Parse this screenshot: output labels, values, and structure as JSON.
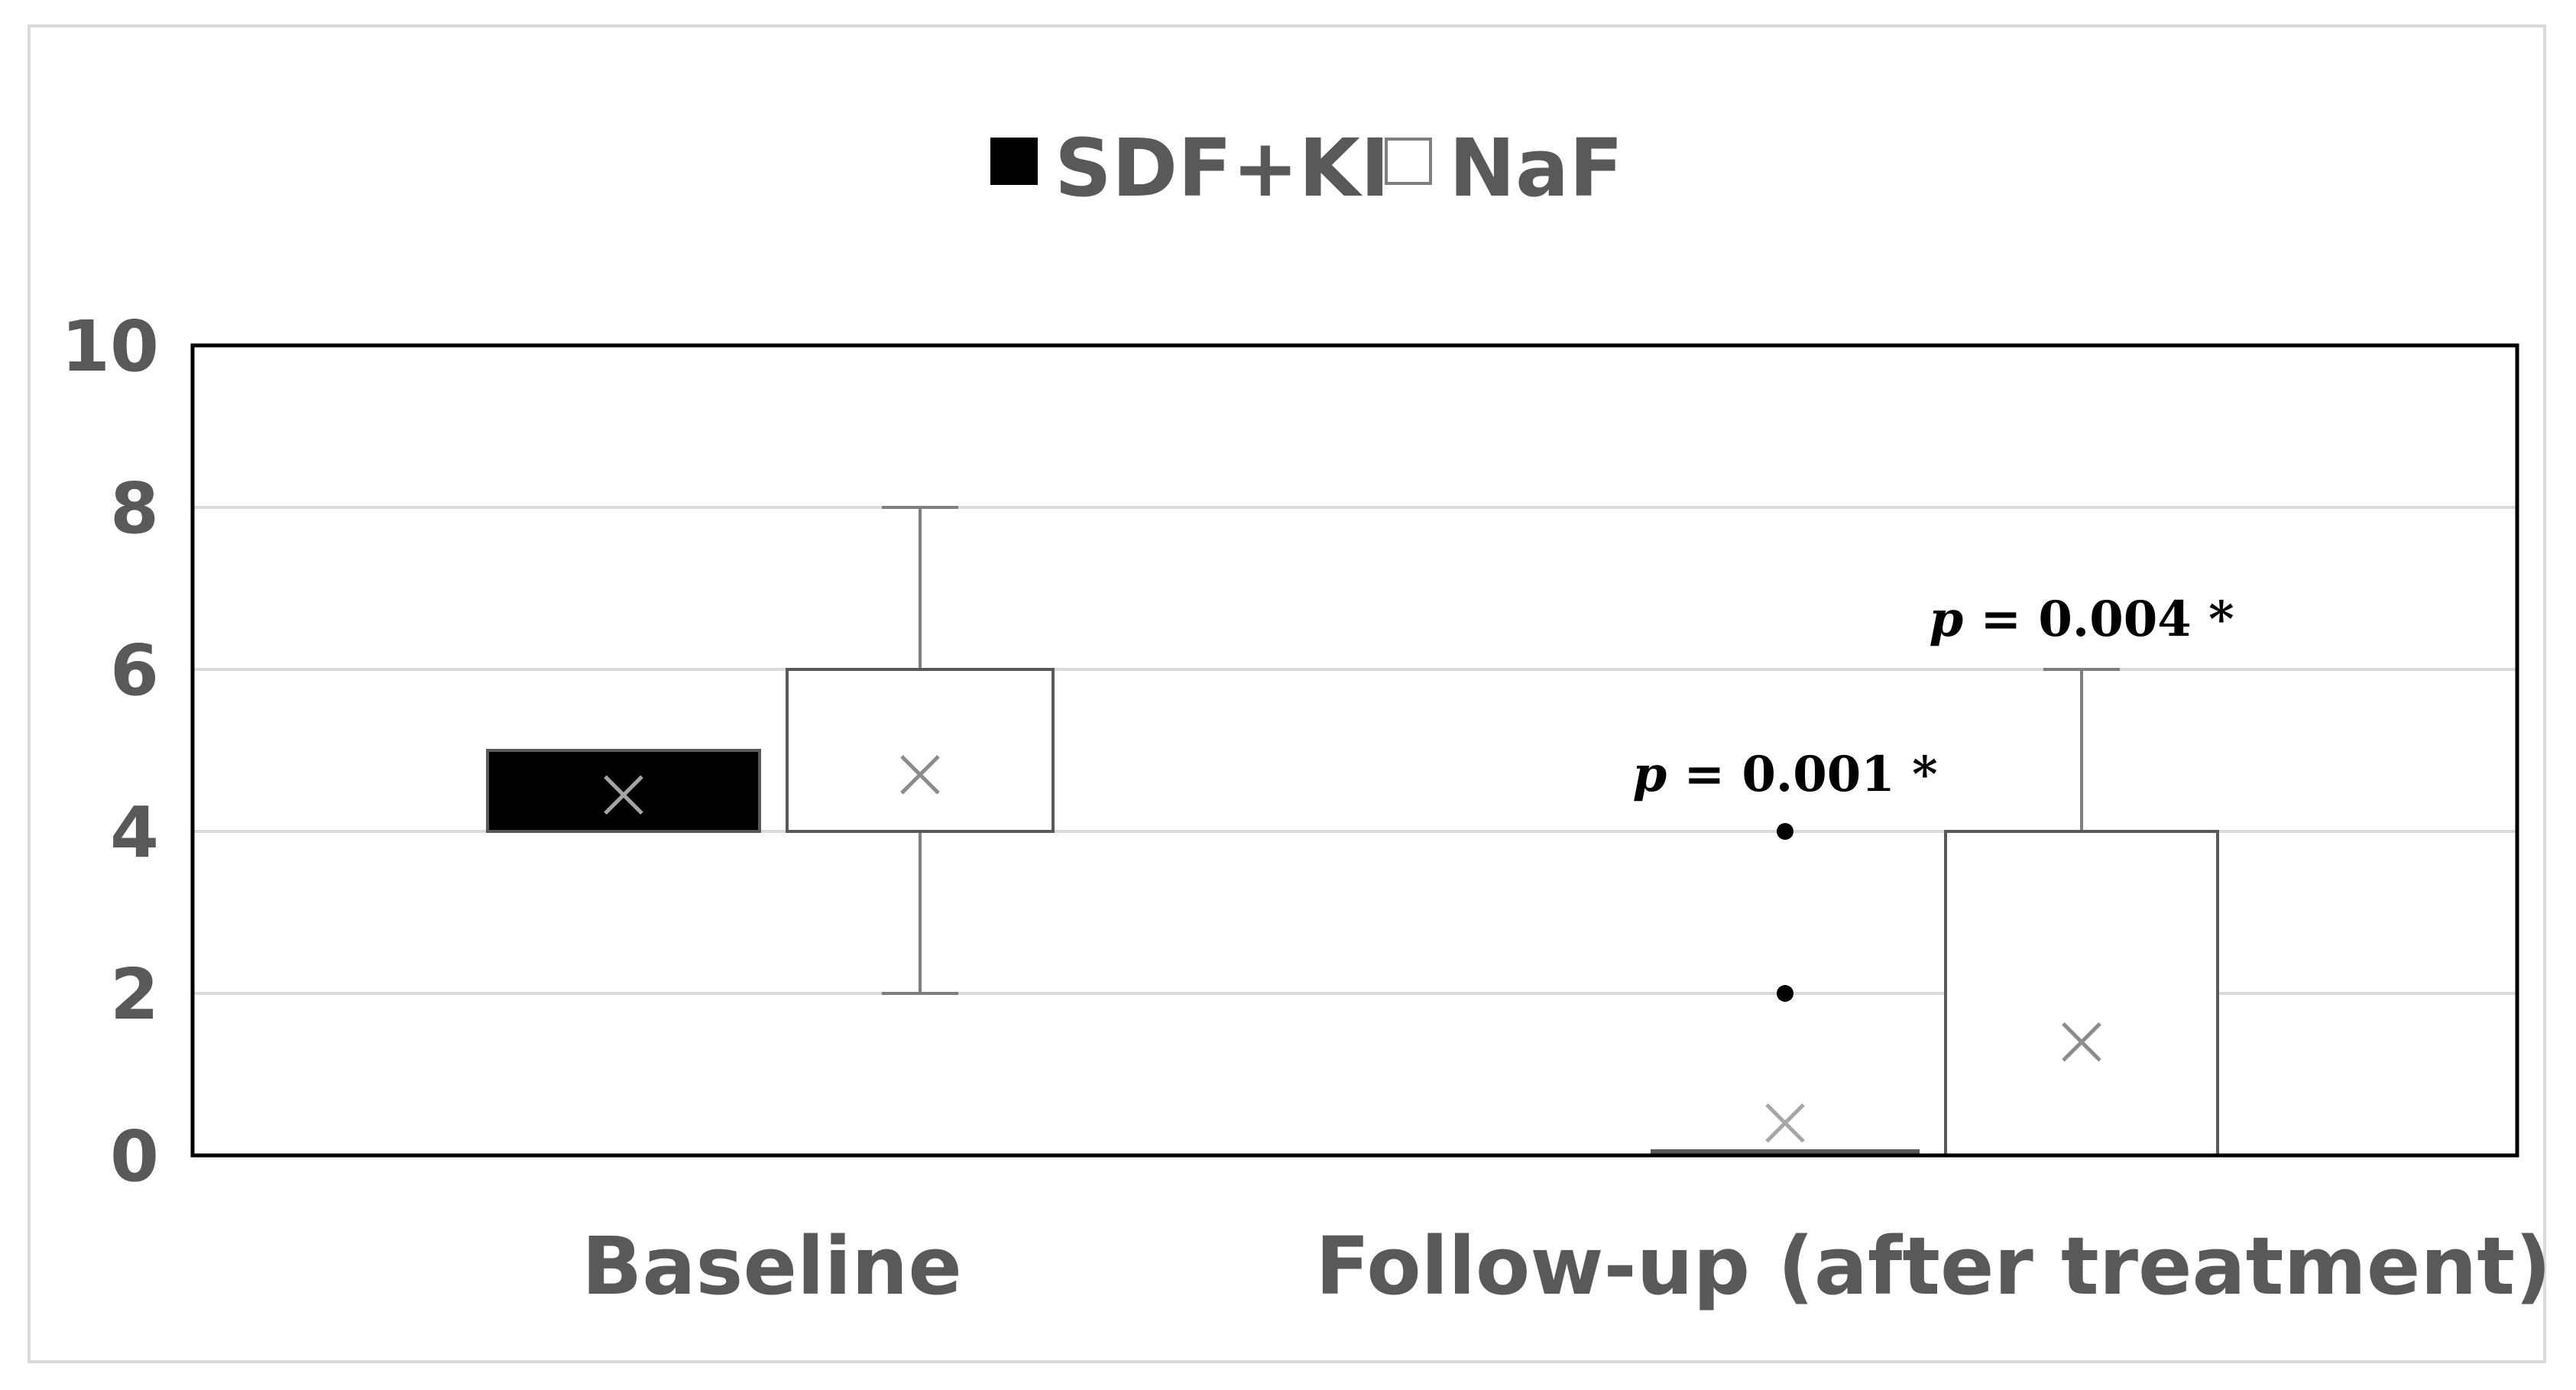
{
  "chart_data": {
    "type": "box",
    "categories": [
      "Baseline",
      "Follow-up (after treatment)"
    ],
    "ylim": [
      0,
      10
    ],
    "yticks": [
      "0",
      "2",
      "4",
      "6",
      "8",
      "10"
    ],
    "grid": true,
    "legend_position": "top-center",
    "series": [
      {
        "name": "SDF+KI",
        "fill": "#000000",
        "boxes": [
          {
            "category": "Baseline",
            "q1": 4,
            "median": 4,
            "q3": 5,
            "whisker_low": 4,
            "whisker_high": 5,
            "mean": 4.45,
            "outliers": []
          },
          {
            "category": "Follow-up (after treatment)",
            "q1": 0,
            "median": 0,
            "q3": 0,
            "whisker_low": 0,
            "whisker_high": 0,
            "mean": 0.4,
            "outliers": [
              2,
              4
            ]
          }
        ]
      },
      {
        "name": "NaF",
        "fill": "#ffffff",
        "boxes": [
          {
            "category": "Baseline",
            "q1": 4,
            "median": 4,
            "q3": 6,
            "whisker_low": 2,
            "whisker_high": 8,
            "mean": 4.7,
            "outliers": []
          },
          {
            "category": "Follow-up (after treatment)",
            "q1": 0,
            "median": 0,
            "q3": 4,
            "whisker_low": 0,
            "whisker_high": 6,
            "mean": 1.4,
            "outliers": []
          }
        ]
      }
    ],
    "annotations": [
      {
        "series": "SDF+KI",
        "category": "Follow-up (after treatment)",
        "p_symbol": "p",
        "text": " = 0.001 *"
      },
      {
        "series": "NaF",
        "category": "Follow-up (after treatment)",
        "p_symbol": "p",
        "text": " = 0.004 *"
      }
    ]
  },
  "colors": {
    "axis": "#000000",
    "grid": "#d9d9d9",
    "whisker": "#7f7f7f",
    "box_border": "#595959",
    "mean_marker_dark": "#a6a6a6",
    "mean_marker_light": "#8c8c8c",
    "text": "#595959"
  }
}
